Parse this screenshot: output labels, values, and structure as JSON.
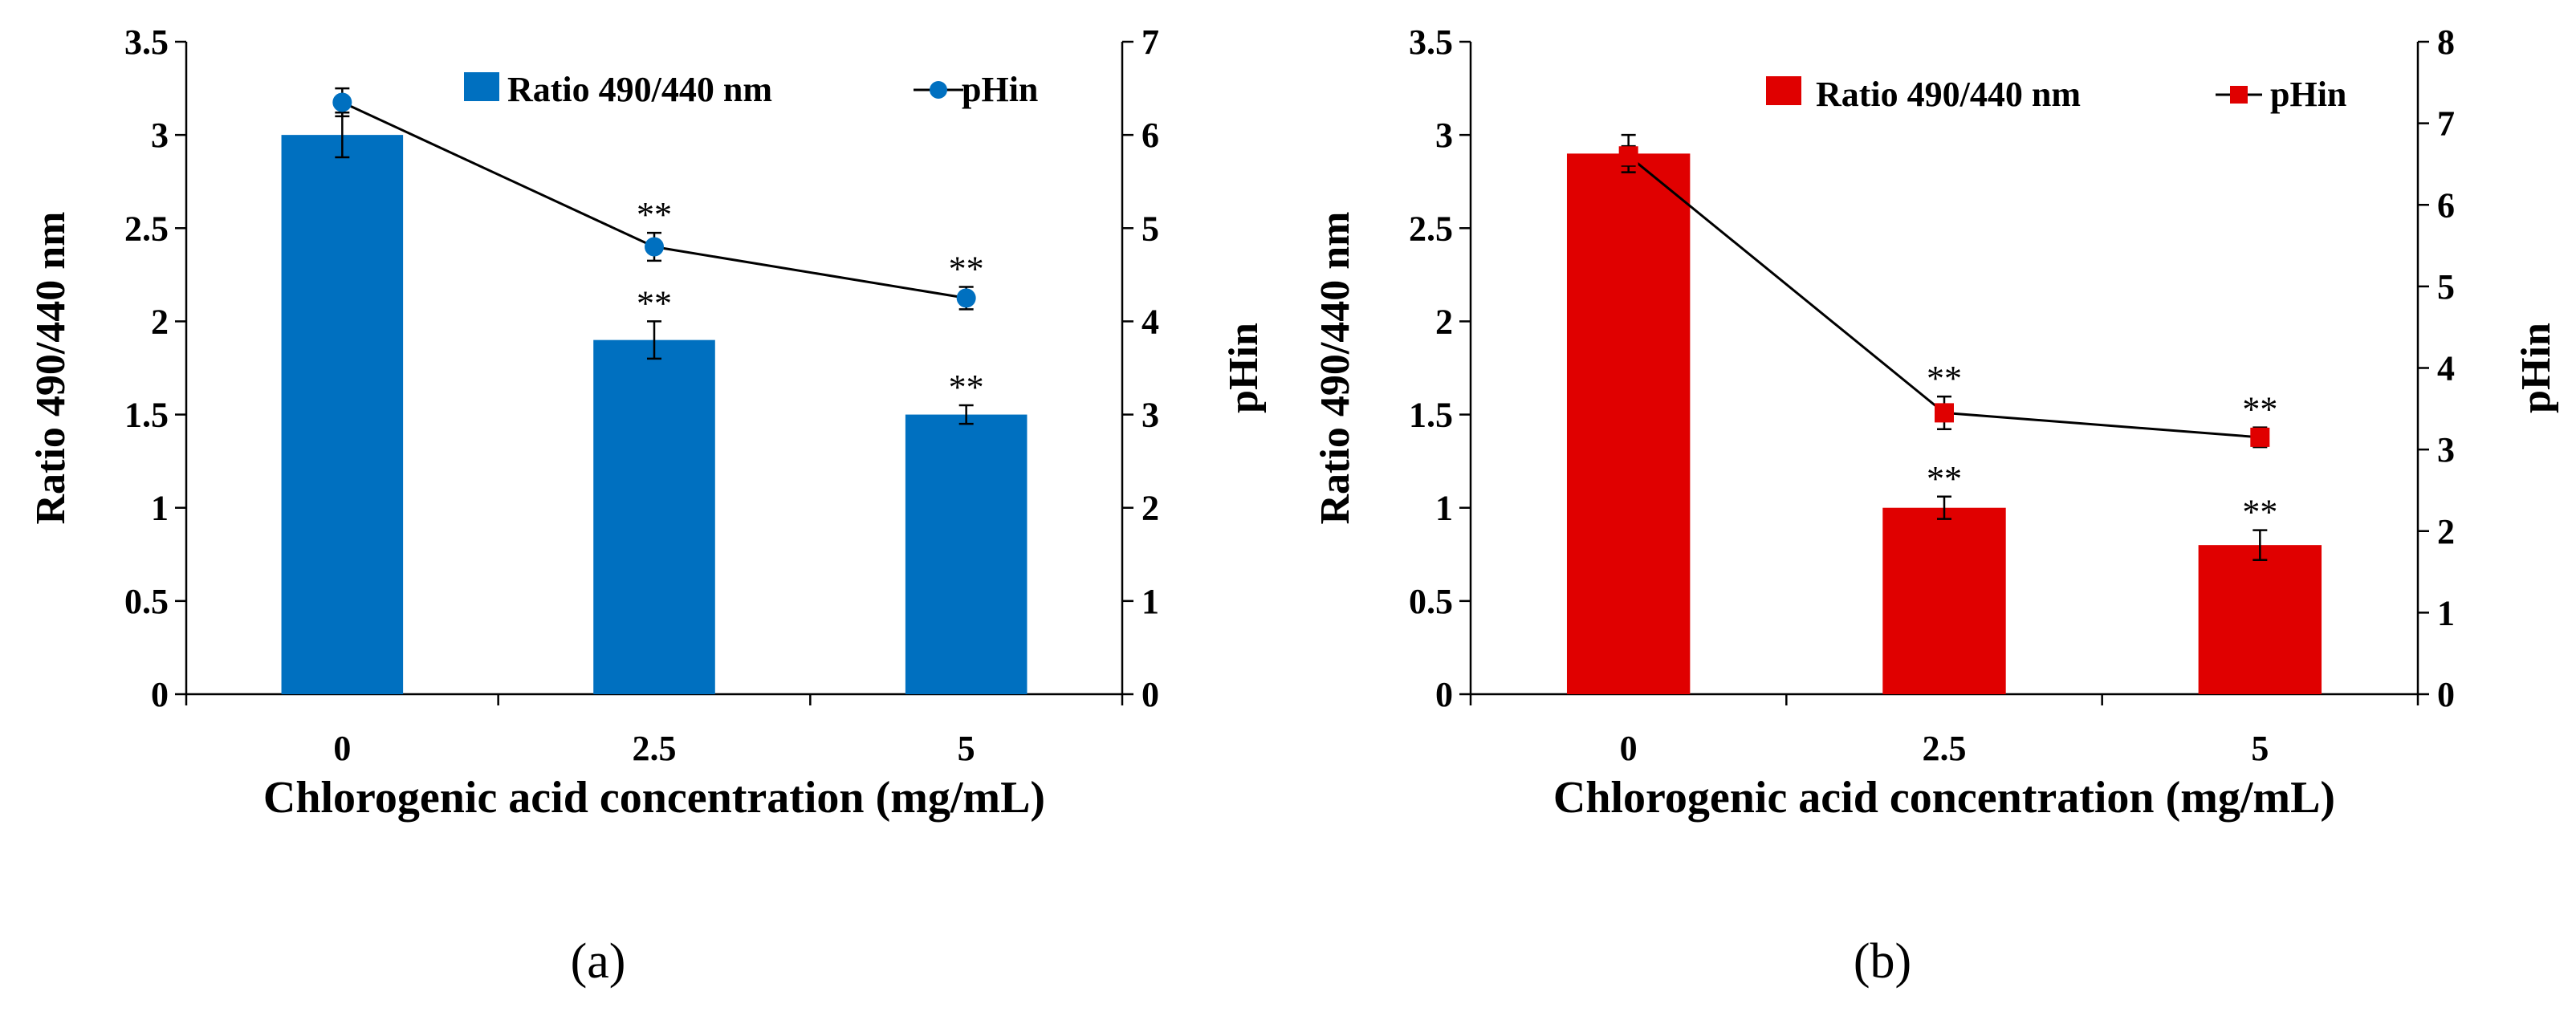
{
  "chart_data": [
    {
      "type": "bar+line",
      "panel_label": "(a)",
      "categories": [
        "0",
        "2.5",
        "5"
      ],
      "bar_series": {
        "name": "Ratio 490/440 nm",
        "values": [
          3.0,
          1.9,
          1.5
        ],
        "errors": [
          0.12,
          0.1,
          0.05
        ]
      },
      "line_series": {
        "name": "pHin",
        "values": [
          6.35,
          4.8,
          4.25
        ],
        "errors": [
          0.15,
          0.15,
          0.12
        ],
        "marker": "circle"
      },
      "bar_sig": [
        "",
        "**",
        "**"
      ],
      "line_sig": [
        "",
        "**",
        "**"
      ],
      "xlabel": "Chlorogenic acid concentration (mg/mL)",
      "ylabel": "Ratio 490/440 nm",
      "y2label": "pHin",
      "ylim": [
        0,
        3.5
      ],
      "y2lim": [
        0,
        7
      ],
      "yticks": [
        "0",
        "0.5",
        "1",
        "1.5",
        "2",
        "2.5",
        "3",
        "3.5"
      ],
      "y2ticks": [
        "0",
        "1",
        "2",
        "3",
        "4",
        "5",
        "6",
        "7"
      ],
      "color": "#0070C0",
      "legend_position": "top-right"
    },
    {
      "type": "bar+line",
      "panel_label": "(b)",
      "categories": [
        "0",
        "2.5",
        "5"
      ],
      "bar_series": {
        "name": "Ratio 490/440 nm",
        "values": [
          2.9,
          1.0,
          0.8
        ],
        "errors": [
          0.1,
          0.06,
          0.08
        ],
        "sig": [
          "",
          "**",
          "**"
        ]
      },
      "line_series": {
        "name": "pHin",
        "values": [
          6.6,
          3.45,
          3.15
        ],
        "errors": [
          0.12,
          0.2,
          0.12
        ],
        "marker": "square"
      },
      "bar_sig": [
        "",
        "**",
        "**"
      ],
      "line_sig": [
        "",
        "**",
        "**"
      ],
      "xlabel": "Chlorogenic acid concentration (mg/mL)",
      "ylabel": "Ratio 490/440 nm",
      "y2label": "pHin",
      "ylim": [
        0,
        3.5
      ],
      "y2lim": [
        0,
        8
      ],
      "yticks": [
        "0",
        "0.5",
        "1",
        "1.5",
        "2",
        "2.5",
        "3",
        "3.5"
      ],
      "y2ticks": [
        "0",
        "1",
        "2",
        "3",
        "4",
        "5",
        "6",
        "7",
        "8"
      ],
      "color": "#E00000",
      "legend_position": "top-right"
    }
  ]
}
